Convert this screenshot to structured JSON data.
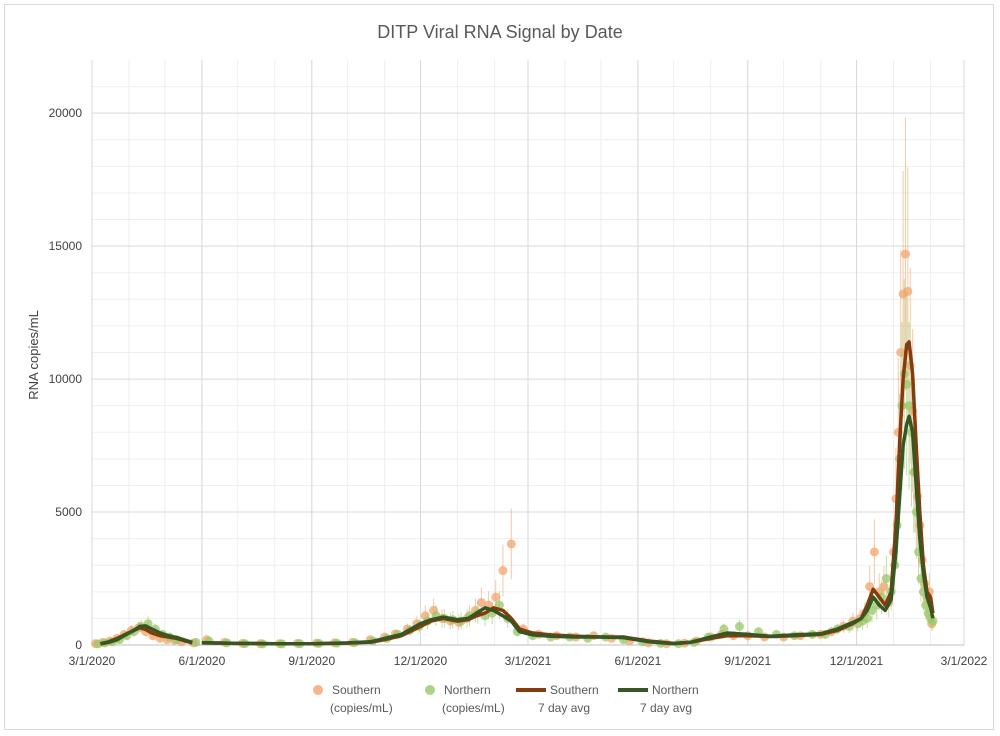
{
  "chart_data": {
    "type": "scatter",
    "title": "DITP Viral RNA Signal by Date",
    "ylabel": "RNA copies/mL",
    "xlabel": "",
    "ylim": [
      0,
      22000
    ],
    "xlim": [
      "2020-03-01",
      "2022-03-01"
    ],
    "yticks": [
      0,
      5000,
      10000,
      15000,
      20000
    ],
    "xticks": [
      "3/1/2020",
      "6/1/2020",
      "9/1/2020",
      "12/1/2020",
      "3/1/2021",
      "6/1/2021",
      "9/1/2021",
      "12/1/2021",
      "3/1/2022"
    ],
    "xtick_dates": [
      "2020-03-01",
      "2020-06-01",
      "2020-09-01",
      "2020-12-01",
      "2021-03-01",
      "2021-06-01",
      "2021-09-01",
      "2021-12-01",
      "2022-03-01"
    ],
    "grid": true,
    "legend_position": "bottom",
    "series": [
      {
        "name": "Southern (copies/mL)",
        "kind": "points",
        "color": "#f4a46c",
        "x": [
          "2020-03-04",
          "2020-03-10",
          "2020-03-16",
          "2020-03-22",
          "2020-03-28",
          "2020-04-03",
          "2020-04-09",
          "2020-04-15",
          "2020-04-21",
          "2020-04-27",
          "2020-05-03",
          "2020-05-09",
          "2020-05-15",
          "2020-05-25",
          "2020-06-05",
          "2020-06-20",
          "2020-07-05",
          "2020-07-20",
          "2020-08-05",
          "2020-08-20",
          "2020-09-05",
          "2020-09-20",
          "2020-10-05",
          "2020-10-20",
          "2020-11-01",
          "2020-11-10",
          "2020-11-20",
          "2020-11-28",
          "2020-12-05",
          "2020-12-12",
          "2020-12-19",
          "2020-12-26",
          "2021-01-02",
          "2021-01-09",
          "2021-01-16",
          "2021-01-21",
          "2021-01-27",
          "2021-02-02",
          "2021-02-08",
          "2021-02-15",
          "2021-02-25",
          "2021-03-10",
          "2021-03-25",
          "2021-04-10",
          "2021-04-25",
          "2021-05-10",
          "2021-05-25",
          "2021-06-10",
          "2021-06-25",
          "2021-07-10",
          "2021-07-20",
          "2021-08-01",
          "2021-08-10",
          "2021-08-20",
          "2021-09-01",
          "2021-09-15",
          "2021-10-01",
          "2021-10-15",
          "2021-11-01",
          "2021-11-10",
          "2021-11-20",
          "2021-11-28",
          "2021-12-04",
          "2021-12-08",
          "2021-12-12",
          "2021-12-16",
          "2021-12-20",
          "2021-12-24",
          "2021-12-28",
          "2022-01-01",
          "2022-01-03",
          "2022-01-05",
          "2022-01-07",
          "2022-01-09",
          "2022-01-11",
          "2022-01-13",
          "2022-01-15",
          "2022-01-17",
          "2022-01-19",
          "2022-01-21",
          "2022-01-23",
          "2022-01-25",
          "2022-01-27",
          "2022-01-29",
          "2022-01-31",
          "2022-02-02"
        ],
        "y": [
          50,
          100,
          150,
          250,
          400,
          550,
          650,
          500,
          350,
          250,
          200,
          180,
          120,
          80,
          200,
          100,
          60,
          50,
          50,
          60,
          70,
          80,
          100,
          200,
          300,
          420,
          600,
          800,
          1100,
          1300,
          1000,
          900,
          850,
          1000,
          1300,
          1600,
          1500,
          1800,
          2800,
          3800,
          600,
          400,
          350,
          300,
          350,
          250,
          150,
          80,
          50,
          70,
          150,
          300,
          400,
          350,
          350,
          300,
          300,
          350,
          400,
          500,
          700,
          900,
          1000,
          1200,
          2200,
          3500,
          2000,
          2200,
          1600,
          3500,
          5500,
          8000,
          11000,
          13200,
          14700,
          13300,
          10500,
          8800,
          6500,
          5600,
          4500,
          3200,
          2300,
          1800,
          2000,
          800
        ]
      },
      {
        "name": "Northern (copies/mL)",
        "kind": "points",
        "color": "#9bc76a",
        "x": [
          "2020-03-06",
          "2020-03-12",
          "2020-03-18",
          "2020-03-24",
          "2020-03-30",
          "2020-04-05",
          "2020-04-11",
          "2020-04-17",
          "2020-04-23",
          "2020-04-29",
          "2020-05-05",
          "2020-05-11",
          "2020-05-27",
          "2020-06-07",
          "2020-06-22",
          "2020-07-07",
          "2020-07-22",
          "2020-08-07",
          "2020-08-22",
          "2020-09-07",
          "2020-09-22",
          "2020-10-07",
          "2020-10-22",
          "2020-11-03",
          "2020-11-12",
          "2020-11-22",
          "2020-11-30",
          "2020-12-07",
          "2020-12-14",
          "2020-12-21",
          "2020-12-28",
          "2021-01-04",
          "2021-01-11",
          "2021-01-18",
          "2021-01-24",
          "2021-01-30",
          "2021-02-05",
          "2021-02-12",
          "2021-02-20",
          "2021-03-05",
          "2021-03-20",
          "2021-04-05",
          "2021-04-20",
          "2021-05-05",
          "2021-05-20",
          "2021-06-05",
          "2021-06-20",
          "2021-07-05",
          "2021-07-18",
          "2021-07-30",
          "2021-08-12",
          "2021-08-25",
          "2021-09-10",
          "2021-09-25",
          "2021-10-10",
          "2021-10-25",
          "2021-11-05",
          "2021-11-15",
          "2021-11-25",
          "2021-12-02",
          "2021-12-06",
          "2021-12-10",
          "2021-12-14",
          "2021-12-18",
          "2021-12-22",
          "2021-12-26",
          "2021-12-30",
          "2022-01-02",
          "2022-01-04",
          "2022-01-06",
          "2022-01-08",
          "2022-01-10",
          "2022-01-12",
          "2022-01-14",
          "2022-01-16",
          "2022-01-18",
          "2022-01-20",
          "2022-01-22",
          "2022-01-24",
          "2022-01-26",
          "2022-01-28",
          "2022-01-30",
          "2022-02-01",
          "2022-02-03"
        ],
        "y": [
          40,
          80,
          120,
          200,
          350,
          500,
          700,
          800,
          600,
          400,
          300,
          200,
          100,
          150,
          80,
          50,
          40,
          40,
          50,
          60,
          70,
          90,
          150,
          250,
          400,
          550,
          700,
          900,
          1100,
          1000,
          950,
          900,
          1100,
          1200,
          1100,
          1200,
          1500,
          1000,
          500,
          350,
          300,
          300,
          250,
          300,
          200,
          120,
          60,
          50,
          100,
          300,
          600,
          700,
          500,
          400,
          350,
          400,
          400,
          600,
          700,
          800,
          900,
          1000,
          1300,
          1500,
          1800,
          2500,
          2000,
          3000,
          4500,
          7000,
          9000,
          10200,
          9800,
          9000,
          8000,
          6500,
          5000,
          3500,
          2500,
          2000,
          1500,
          1200,
          1000,
          900
        ]
      },
      {
        "name": "Southern 7 day avg",
        "kind": "line",
        "color": "#843c0c",
        "x": [
          "2020-03-08",
          "2020-03-15",
          "2020-03-22",
          "2020-03-29",
          "2020-04-05",
          "2020-04-10",
          "2020-04-15",
          "2020-04-20",
          "2020-04-27",
          "2020-05-04",
          "2020-05-11",
          "2020-05-18",
          "2020-05-24"
        ],
        "y": [
          50,
          120,
          250,
          400,
          550,
          650,
          580,
          450,
          350,
          300,
          250,
          150,
          80
        ],
        "x2": [
          "2020-06-01",
          "2020-07-01",
          "2020-08-01",
          "2020-09-01",
          "2020-10-01",
          "2020-10-20",
          "2020-11-01",
          "2020-11-15",
          "2020-12-01",
          "2020-12-10",
          "2020-12-20",
          "2021-01-01",
          "2021-01-10",
          "2021-01-17",
          "2021-01-24",
          "2021-01-31",
          "2021-02-08",
          "2021-02-15",
          "2021-02-22",
          "2021-03-05",
          "2021-03-20",
          "2021-04-10",
          "2021-05-01",
          "2021-05-20",
          "2021-06-10",
          "2021-07-01",
          "2021-07-15",
          "2021-08-01",
          "2021-08-15",
          "2021-09-01",
          "2021-09-20",
          "2021-10-10",
          "2021-11-01",
          "2021-11-15",
          "2021-11-28",
          "2021-12-05",
          "2021-12-10",
          "2021-12-15",
          "2021-12-20",
          "2021-12-25",
          "2021-12-30",
          "2022-01-03",
          "2022-01-06",
          "2022-01-09",
          "2022-01-12",
          "2022-01-14",
          "2022-01-17",
          "2022-01-20",
          "2022-01-23",
          "2022-01-26",
          "2022-01-29",
          "2022-02-01",
          "2022-02-03"
        ],
        "y2": [
          80,
          60,
          50,
          50,
          70,
          100,
          200,
          350,
          700,
          900,
          1000,
          900,
          950,
          1100,
          1200,
          1400,
          1300,
          1000,
          600,
          450,
          380,
          330,
          300,
          300,
          150,
          60,
          100,
          250,
          350,
          350,
          320,
          350,
          400,
          550,
          800,
          1000,
          1500,
          2100,
          1800,
          1500,
          2000,
          4500,
          7500,
          10000,
          11300,
          11400,
          10200,
          7500,
          5000,
          3000,
          2000,
          1800,
          1200
        ]
      },
      {
        "name": "Northern 7 day avg",
        "kind": "line",
        "color": "#375623",
        "x": [
          "2020-03-08",
          "2020-03-15",
          "2020-03-22",
          "2020-03-29",
          "2020-04-05",
          "2020-04-10",
          "2020-04-15",
          "2020-04-20",
          "2020-04-27",
          "2020-05-04",
          "2020-05-11",
          "2020-05-18",
          "2020-05-24"
        ],
        "y": [
          40,
          100,
          200,
          380,
          550,
          700,
          720,
          600,
          450,
          350,
          280,
          180,
          100
        ],
        "x2": [
          "2020-06-01",
          "2020-07-01",
          "2020-08-01",
          "2020-09-01",
          "2020-10-01",
          "2020-10-20",
          "2020-11-01",
          "2020-11-15",
          "2020-12-01",
          "2020-12-10",
          "2020-12-20",
          "2021-01-01",
          "2021-01-10",
          "2021-01-17",
          "2021-01-24",
          "2021-01-31",
          "2021-02-08",
          "2021-02-15",
          "2021-02-22",
          "2021-03-05",
          "2021-03-20",
          "2021-04-10",
          "2021-05-01",
          "2021-05-20",
          "2021-06-10",
          "2021-07-01",
          "2021-07-15",
          "2021-08-01",
          "2021-08-15",
          "2021-09-01",
          "2021-09-20",
          "2021-10-10",
          "2021-11-01",
          "2021-11-15",
          "2021-11-28",
          "2021-12-05",
          "2021-12-10",
          "2021-12-15",
          "2021-12-20",
          "2021-12-25",
          "2021-12-30",
          "2022-01-03",
          "2022-01-06",
          "2022-01-09",
          "2022-01-12",
          "2022-01-14",
          "2022-01-17",
          "2022-01-20",
          "2022-01-23",
          "2022-01-26",
          "2022-01-29",
          "2022-02-01",
          "2022-02-03"
        ],
        "y2": [
          90,
          60,
          50,
          50,
          80,
          120,
          250,
          400,
          800,
          950,
          1050,
          950,
          1000,
          1200,
          1400,
          1300,
          1100,
          900,
          500,
          380,
          330,
          300,
          300,
          280,
          120,
          50,
          100,
          300,
          450,
          400,
          330,
          380,
          420,
          600,
          850,
          1000,
          1300,
          1800,
          1500,
          1300,
          1700,
          3500,
          5500,
          7500,
          8300,
          8600,
          8000,
          6000,
          4000,
          2700,
          1800,
          1400,
          1000
        ]
      }
    ],
    "legend": [
      {
        "line1": "Southern",
        "line2": "(copies/mL)"
      },
      {
        "line1": "Northern",
        "line2": "(copies/mL)"
      },
      {
        "line1": "Southern",
        "line2": "7 day avg"
      },
      {
        "line1": "Northern",
        "line2": "7 day avg"
      }
    ]
  }
}
